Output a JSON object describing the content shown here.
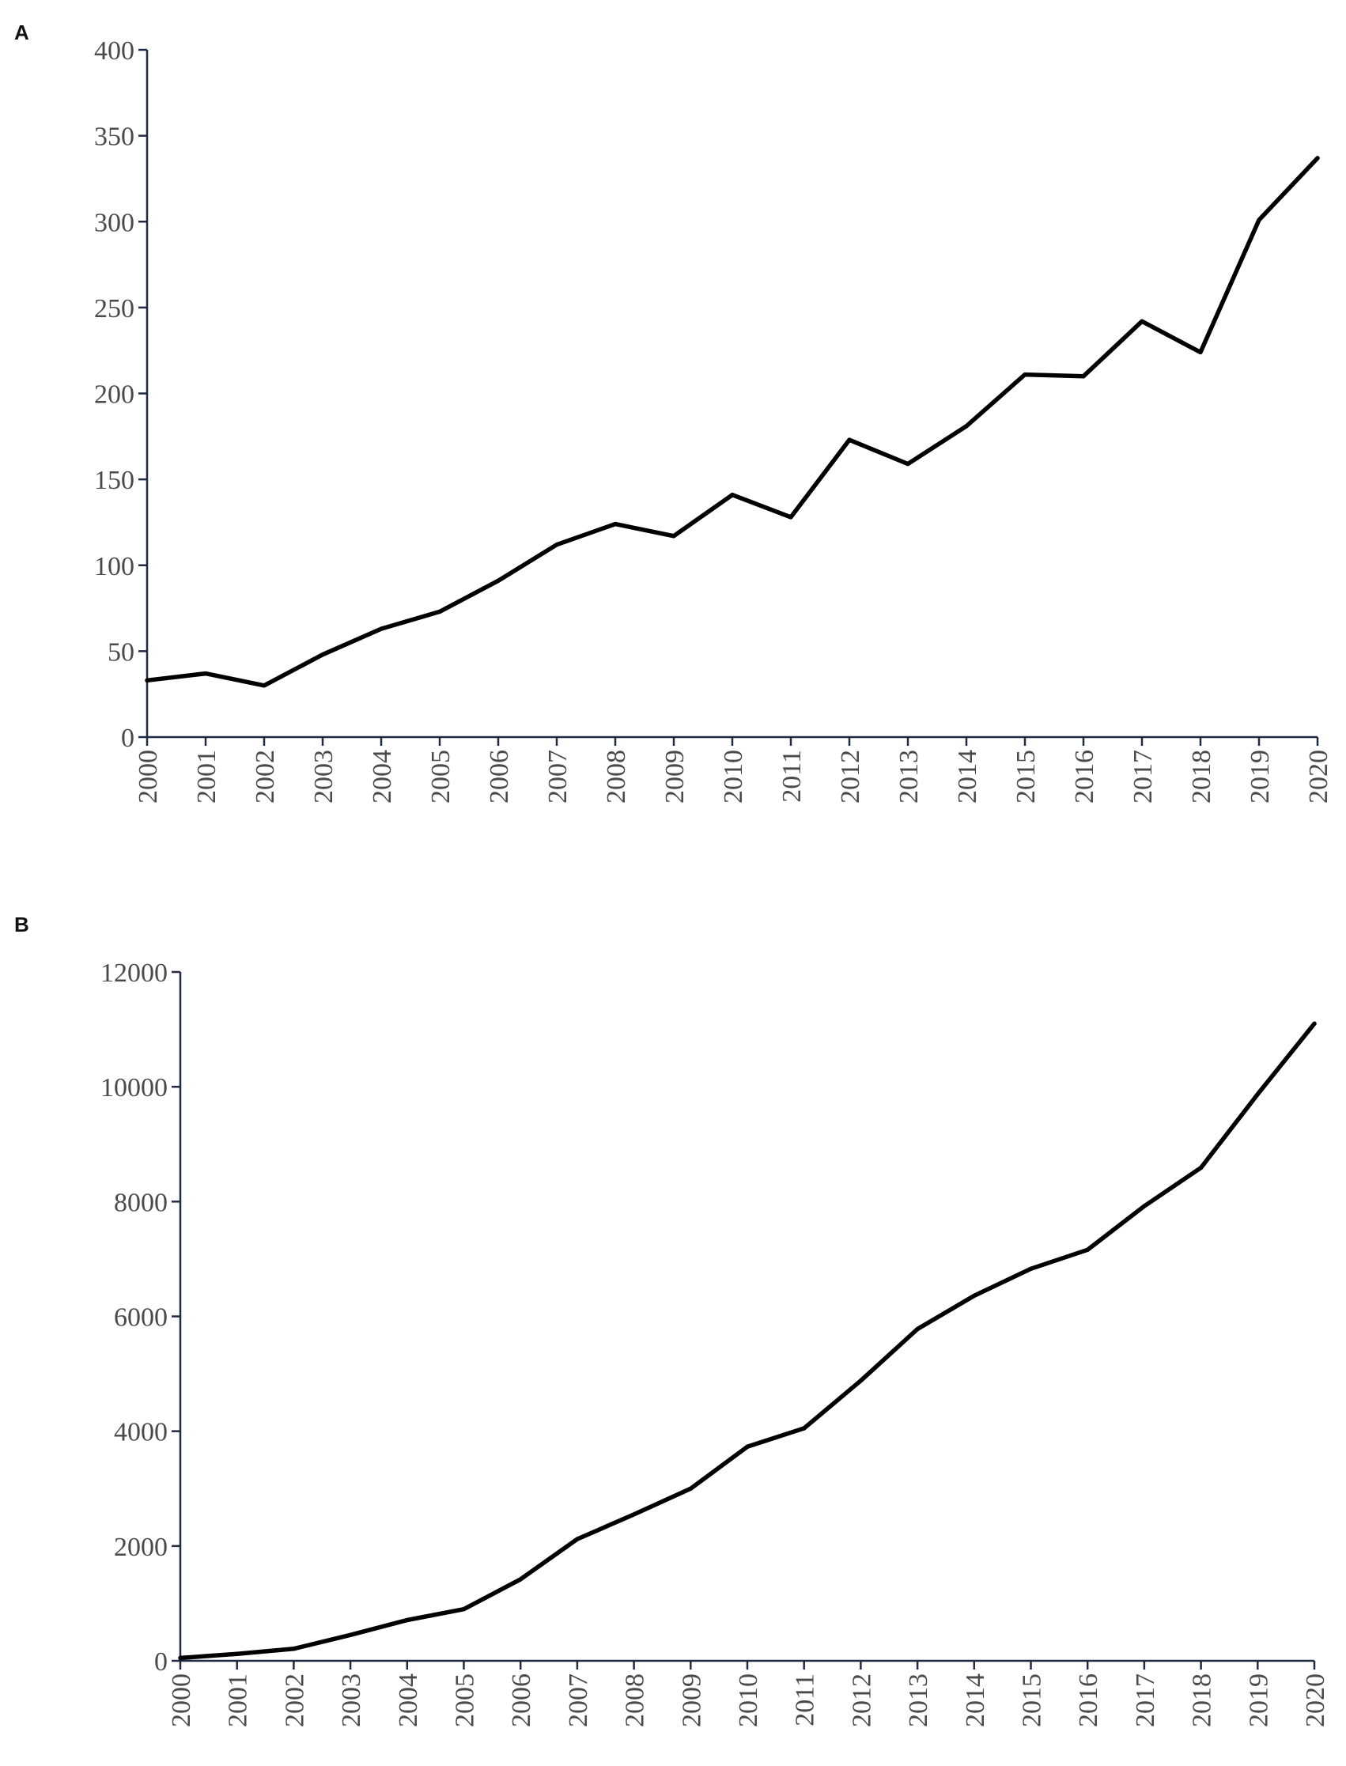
{
  "chart_data": [
    {
      "type": "line",
      "panel_label": "A",
      "title": "",
      "xlabel": "",
      "ylabel": "",
      "x": [
        "2000",
        "2001",
        "2002",
        "2003",
        "2004",
        "2005",
        "2006",
        "2007",
        "2008",
        "2009",
        "2010",
        "2011",
        "2012",
        "2013",
        "2014",
        "2015",
        "2016",
        "2017",
        "2018",
        "2019",
        "2020"
      ],
      "y_ticks": [
        0,
        50,
        100,
        150,
        200,
        250,
        300,
        350,
        400
      ],
      "ylim": [
        0,
        400
      ],
      "grid": false,
      "series": [
        {
          "values": [
            33,
            37,
            30,
            48,
            63,
            73,
            91,
            112,
            124,
            117,
            141,
            128,
            173,
            159,
            181,
            211,
            210,
            242,
            224,
            301,
            337
          ],
          "color": "#000000"
        }
      ]
    },
    {
      "type": "line",
      "panel_label": "B",
      "title": "",
      "xlabel": "",
      "ylabel": "",
      "x": [
        "2000",
        "2001",
        "2002",
        "2003",
        "2004",
        "2005",
        "2006",
        "2007",
        "2008",
        "2009",
        "2010",
        "2011",
        "2012",
        "2013",
        "2014",
        "2015",
        "2016",
        "2017",
        "2018",
        "2019",
        "2020"
      ],
      "y_ticks": [
        0,
        2000,
        4000,
        6000,
        8000,
        10000,
        12000
      ],
      "ylim": [
        0,
        12000
      ],
      "grid": false,
      "series": [
        {
          "values": [
            50,
            120,
            210,
            450,
            710,
            900,
            1420,
            2120,
            2550,
            3000,
            3730,
            4050,
            4880,
            5780,
            6360,
            6830,
            7160,
            7920,
            8590,
            9870,
            11100
          ],
          "color": "#000000"
        }
      ]
    }
  ]
}
